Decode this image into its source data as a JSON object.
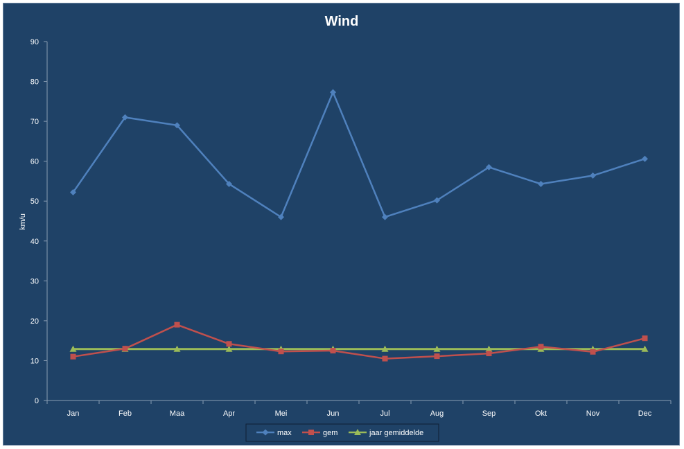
{
  "chart_data": {
    "type": "line",
    "title": "Wind",
    "xlabel": "",
    "ylabel": "km/u",
    "ylim": [
      0,
      90
    ],
    "yticks": [
      0,
      10,
      20,
      30,
      40,
      50,
      60,
      70,
      80,
      90
    ],
    "categories": [
      "Jan",
      "Feb",
      "Maa",
      "Apr",
      "Mei",
      "Jun",
      "Jul",
      "Aug",
      "Sep",
      "Okt",
      "Nov",
      "Dec"
    ],
    "grid": false,
    "legend_position": "bottom",
    "series": [
      {
        "name": "max",
        "color": "#4f81bd",
        "marker": "diamond",
        "values": [
          52.2,
          71.0,
          69.0,
          54.3,
          46.0,
          77.3,
          46.0,
          50.2,
          58.5,
          54.3,
          56.4,
          60.6
        ]
      },
      {
        "name": "gem",
        "color": "#c0504d",
        "marker": "square",
        "values": [
          11.0,
          13.0,
          19.0,
          14.2,
          12.3,
          12.5,
          10.5,
          11.1,
          11.8,
          13.5,
          12.2,
          15.6
        ]
      },
      {
        "name": "jaar gemiddelde",
        "color": "#9bbb59",
        "marker": "triangle",
        "values": [
          12.9,
          12.9,
          12.9,
          12.9,
          12.9,
          12.9,
          12.9,
          12.9,
          12.9,
          12.9,
          12.9,
          12.9
        ]
      }
    ]
  }
}
